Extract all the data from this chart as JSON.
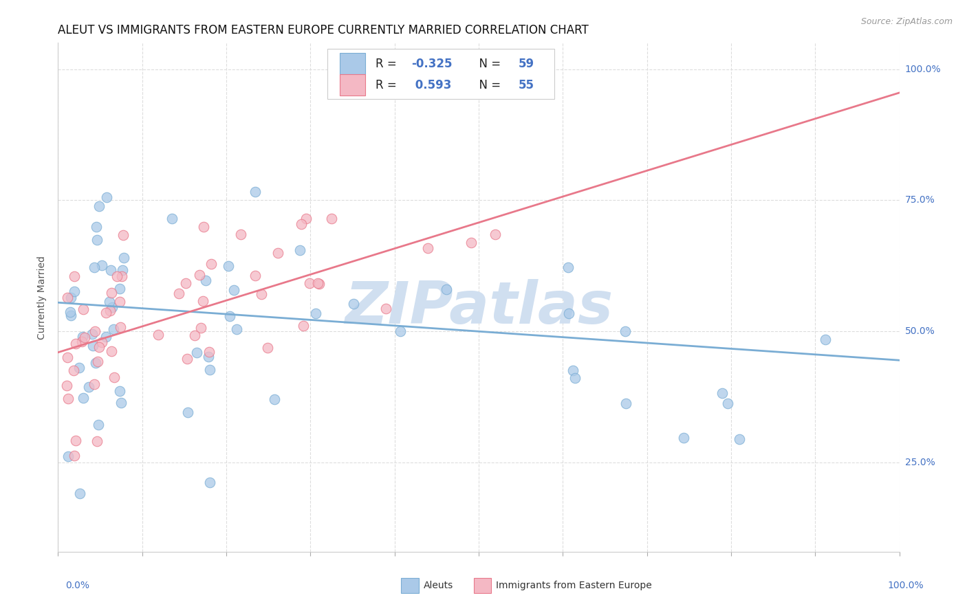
{
  "title": "ALEUT VS IMMIGRANTS FROM EASTERN EUROPE CURRENTLY MARRIED CORRELATION CHART",
  "source": "Source: ZipAtlas.com",
  "ylabel": "Currently Married",
  "y_tick_labels": [
    "25.0%",
    "50.0%",
    "75.0%",
    "100.0%"
  ],
  "y_tick_values": [
    0.25,
    0.5,
    0.75,
    1.0
  ],
  "aleuts_color": "#7aadd4",
  "immigrants_color": "#e8788a",
  "aleuts_scatter_color": "#aac9e8",
  "immigrants_scatter_color": "#f4b8c4",
  "background_color": "#ffffff",
  "grid_color": "#dddddd",
  "watermark": "ZIPatlas",
  "watermark_color": "#d0dff0",
  "aleuts_R": -0.325,
  "aleuts_N": 59,
  "immigrants_R": 0.593,
  "immigrants_N": 55,
  "xmin": 0.0,
  "xmax": 1.0,
  "ymin": 0.08,
  "ymax": 1.05,
  "title_fontsize": 12,
  "axis_label_fontsize": 10,
  "tick_fontsize": 10,
  "r_color": "#4472c4",
  "n_color": "#4472c4",
  "aleuts_line_y0": 0.555,
  "aleuts_line_y1": 0.445,
  "immigrants_line_y0": 0.46,
  "immigrants_line_y1": 0.955
}
